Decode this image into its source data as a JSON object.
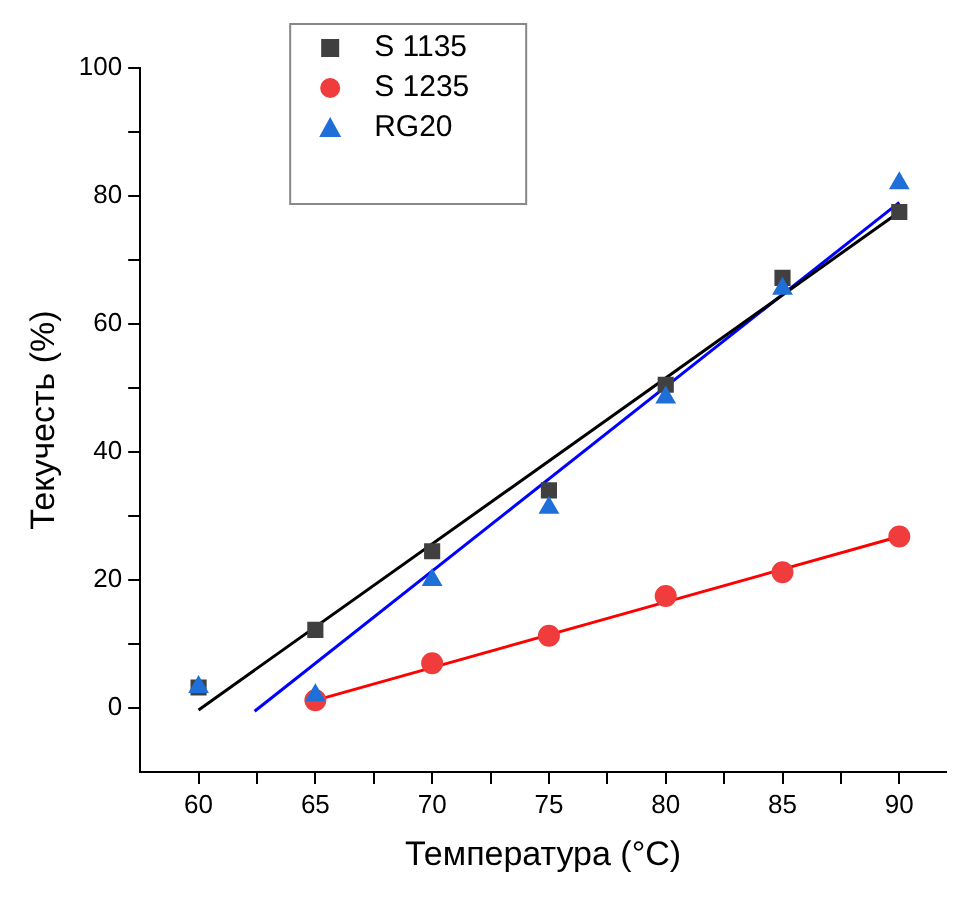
{
  "chart_data": {
    "type": "scatter",
    "xlabel": "Температура (°C)",
    "ylabel": "Текучесть (%)",
    "xlim": [
      57.5,
      92
    ],
    "xticks": [
      60,
      {
        "value": 62.5,
        "label": null
      },
      65,
      {
        "value": 67.5,
        "label": null
      },
      70,
      {
        "value": 72.5,
        "label": null
      },
      75,
      {
        "value": 77.5,
        "label": null
      },
      80,
      {
        "value": 82.5,
        "label": null
      },
      85,
      {
        "value": 87.5,
        "label": null
      },
      90
    ],
    "ylim": [
      -10,
      100
    ],
    "yticks": [
      0,
      {
        "value": 10,
        "label": null
      },
      20,
      {
        "value": 30,
        "label": null
      },
      40,
      {
        "value": 50,
        "label": null
      },
      60,
      {
        "value": 70,
        "label": null
      },
      80,
      {
        "value": 90,
        "label": null
      },
      100
    ],
    "grid": false,
    "legend": "top left",
    "series": [
      {
        "name": "S 1135",
        "color": "#404040",
        "marker": "square",
        "x": [
          60,
          65,
          70,
          75,
          80,
          85,
          90
        ],
        "values": [
          3.2,
          12.2,
          24.5,
          34,
          50.5,
          67.2,
          77.5
        ]
      },
      {
        "name": "S 1235",
        "color": "#f03c3c",
        "marker": "circle",
        "x": [
          65,
          70,
          75,
          80,
          85,
          90
        ],
        "values": [
          1.2,
          7,
          11.3,
          17.5,
          21.2,
          26.8
        ]
      },
      {
        "name": "RG20",
        "color": "#1f6fd8",
        "marker": "triangle",
        "x": [
          60,
          65,
          70,
          75,
          80,
          85,
          90
        ],
        "values": [
          3.3,
          2,
          20,
          31.3,
          48.5,
          65.5,
          82
        ]
      },
      {
        "type": "line",
        "color": "#000000",
        "marker": "none",
        "x": [
          60,
          90
        ],
        "values": [
          -0.3,
          77.5
        ]
      },
      {
        "type": "line",
        "color": "#ff0000",
        "marker": "none",
        "x": [
          65,
          90
        ],
        "values": [
          1.2,
          26.8
        ]
      },
      {
        "type": "line",
        "color": "#0000ff",
        "marker": "none",
        "x": [
          62.4,
          90
        ],
        "values": [
          -0.5,
          79
        ]
      }
    ]
  }
}
